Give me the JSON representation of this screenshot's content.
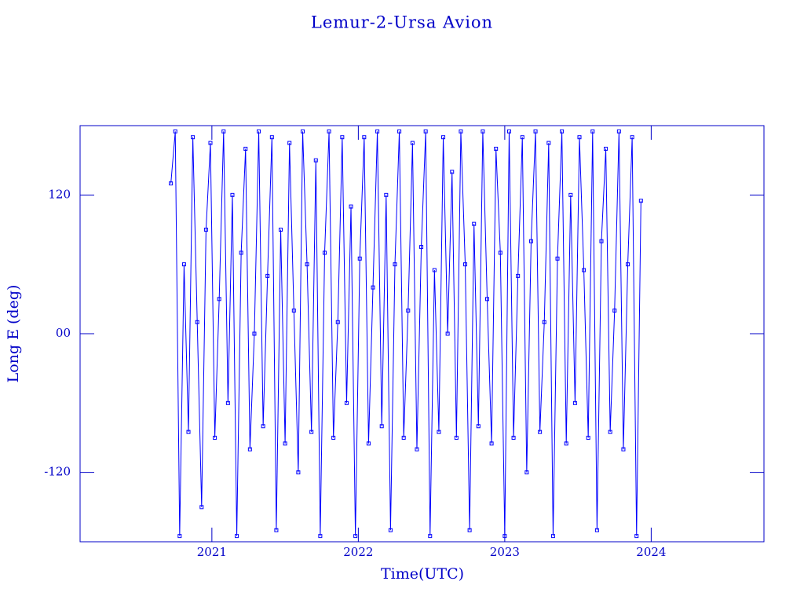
{
  "chart_data": {
    "type": "line",
    "title": "Lemur-2-Ursa Avion",
    "x_label": "Time(UTC)",
    "y_label": "Long E (deg)",
    "xlim": [
      2020.1,
      2024.77
    ],
    "xticks": [
      2021,
      2022,
      2023,
      2024
    ],
    "ylim": [
      -180,
      180
    ],
    "yticks": [
      -120,
      {
        "value": 0,
        "label": "00"
      },
      120
    ],
    "grid": false,
    "markers": true,
    "x": [
      2020.72,
      2020.75,
      2020.78,
      2020.81,
      2020.84,
      2020.87,
      2020.9,
      2020.93,
      2020.96,
      2020.99,
      2021.02,
      2021.05,
      2021.08,
      2021.11,
      2021.14,
      2021.17,
      2021.2,
      2021.23,
      2021.26,
      2021.29,
      2021.32,
      2021.35,
      2021.38,
      2021.41,
      2021.44,
      2021.47,
      2021.5,
      2021.53,
      2021.56,
      2021.59,
      2021.62,
      2021.65,
      2021.68,
      2021.71,
      2021.74,
      2021.77,
      2021.8,
      2021.83,
      2021.86,
      2021.89,
      2021.92,
      2021.95,
      2021.98,
      2022.01,
      2022.04,
      2022.07,
      2022.1,
      2022.13,
      2022.16,
      2022.19,
      2022.22,
      2022.25,
      2022.28,
      2022.31,
      2022.34,
      2022.37,
      2022.4,
      2022.43,
      2022.46,
      2022.49,
      2022.52,
      2022.55,
      2022.58,
      2022.61,
      2022.64,
      2022.67,
      2022.7,
      2022.73,
      2022.76,
      2022.79,
      2022.82,
      2022.85,
      2022.88,
      2022.91,
      2022.94,
      2022.97,
      2023.0,
      2023.03,
      2023.06,
      2023.09,
      2023.12,
      2023.15,
      2023.18,
      2023.21,
      2023.24,
      2023.27,
      2023.3,
      2023.33,
      2023.36,
      2023.39,
      2023.42,
      2023.45,
      2023.48,
      2023.51,
      2023.54,
      2023.57,
      2023.6,
      2023.63,
      2023.66,
      2023.69,
      2023.72,
      2023.75,
      2023.78,
      2023.81,
      2023.84,
      2023.87,
      2023.9,
      2023.93
    ],
    "series": [
      {
        "color": "#0000ff",
        "values": [
          130,
          175,
          -175,
          60,
          -85,
          170,
          10,
          -150,
          90,
          165,
          -90,
          30,
          175,
          -60,
          120,
          -175,
          70,
          160,
          -100,
          0,
          175,
          -80,
          50,
          170,
          -170,
          90,
          -95,
          165,
          20,
          -120,
          175,
          60,
          -85,
          150,
          -175,
          70,
          175,
          -90,
          10,
          170,
          -60,
          110,
          -175,
          65,
          170,
          -95,
          40,
          175,
          -80,
          120,
          -170,
          60,
          175,
          -90,
          20,
          165,
          -100,
          75,
          175,
          -175,
          55,
          -85,
          170,
          0,
          140,
          -90,
          175,
          60,
          -170,
          95,
          -80,
          175,
          30,
          -95,
          160,
          70,
          -175,
          175,
          -90,
          50,
          170,
          -120,
          80,
          175,
          -85,
          10,
          165,
          -175,
          65,
          175,
          -95,
          120,
          -60,
          170,
          55,
          -90,
          175,
          -170,
          80,
          160,
          -85,
          20,
          175,
          -100,
          60,
          170,
          -175,
          115
        ]
      }
    ]
  }
}
